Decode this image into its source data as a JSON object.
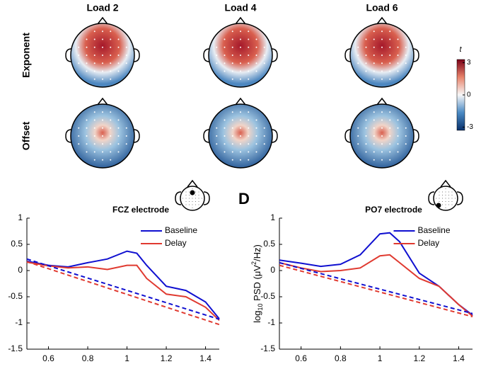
{
  "figure": {
    "columns": [
      "Load 2",
      "Load 4",
      "Load 6"
    ],
    "rows": [
      "Exponent",
      "Offset"
    ],
    "colorbar": {
      "label": "t",
      "lim": [
        -3.3,
        3.3
      ],
      "ticks": [
        3,
        0,
        -3
      ]
    }
  },
  "chart_data": [
    {
      "type": "line",
      "title": "FCZ electrode",
      "x": [
        0.49,
        0.6,
        0.7,
        0.8,
        0.9,
        1.0,
        1.05,
        1.1,
        1.2,
        1.3,
        1.4,
        1.47
      ],
      "series": [
        {
          "name": "Baseline",
          "color": "#1010d0",
          "values": [
            0.18,
            0.1,
            0.07,
            0.15,
            0.22,
            0.37,
            0.33,
            0.1,
            -0.3,
            -0.38,
            -0.6,
            -0.92
          ]
        },
        {
          "name": "Delay",
          "color": "#e03a30",
          "values": [
            0.16,
            0.09,
            0.05,
            0.07,
            0.02,
            0.1,
            0.1,
            -0.15,
            -0.45,
            -0.5,
            -0.7,
            -0.95
          ]
        },
        {
          "color": "#1010d0",
          "dashed": true,
          "x": [
            0.49,
            1.47
          ],
          "values": [
            0.22,
            -0.93
          ]
        },
        {
          "color": "#e03a30",
          "dashed": true,
          "x": [
            0.49,
            1.47
          ],
          "values": [
            0.17,
            -1.03
          ]
        }
      ],
      "xlim": [
        0.49,
        1.47
      ],
      "xticks": [
        0.6,
        0.8,
        1,
        1.2,
        1.4
      ],
      "ylim": [
        -1.5,
        1
      ],
      "yticks": [
        -1.5,
        -1,
        -0.5,
        0,
        0.5,
        1
      ],
      "electrode": "front"
    },
    {
      "type": "line",
      "title": "PO7 electrode",
      "panel_label": "D",
      "ylabel": [
        "log",
        "10",
        " PSD (μV",
        "2",
        "/Hz)"
      ],
      "x": [
        0.49,
        0.6,
        0.7,
        0.8,
        0.9,
        1.0,
        1.05,
        1.1,
        1.2,
        1.3,
        1.4,
        1.47
      ],
      "series": [
        {
          "name": "Baseline",
          "color": "#1010d0",
          "values": [
            0.2,
            0.14,
            0.08,
            0.12,
            0.3,
            0.7,
            0.72,
            0.55,
            -0.05,
            -0.3,
            -0.65,
            -0.85
          ]
        },
        {
          "name": "Delay",
          "color": "#e03a30",
          "values": [
            0.15,
            0.05,
            -0.02,
            0.0,
            0.05,
            0.28,
            0.3,
            0.15,
            -0.15,
            -0.3,
            -0.65,
            -0.87
          ]
        },
        {
          "color": "#1010d0",
          "dashed": true,
          "x": [
            0.49,
            1.47
          ],
          "values": [
            0.15,
            -0.82
          ]
        },
        {
          "color": "#e03a30",
          "dashed": true,
          "x": [
            0.49,
            1.47
          ],
          "values": [
            0.1,
            -0.88
          ]
        }
      ],
      "xlim": [
        0.49,
        1.47
      ],
      "xticks": [
        0.6,
        0.8,
        1,
        1.2,
        1.4
      ],
      "ylim": [
        -1.5,
        1
      ],
      "yticks": [
        -1.5,
        -1,
        -0.5,
        0,
        0.5,
        1
      ],
      "electrode": "back-left"
    }
  ]
}
